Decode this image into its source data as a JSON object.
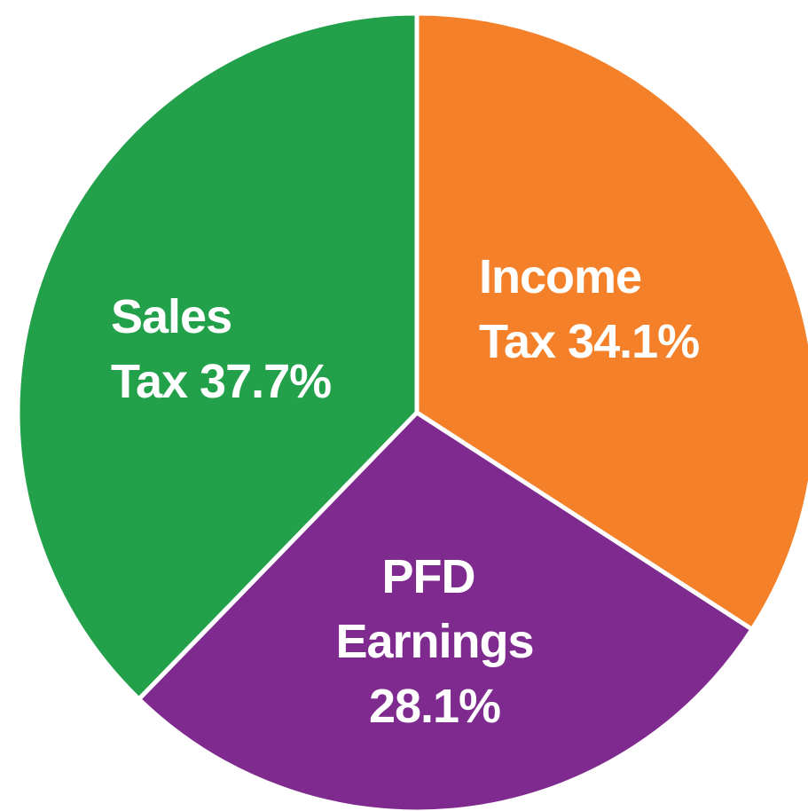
{
  "chart_data": {
    "type": "pie",
    "categories": [
      "Income Tax",
      "PFD Earnings",
      "Sales Tax"
    ],
    "values": [
      34.1,
      28.1,
      37.7
    ],
    "value_labels": [
      "34.1%",
      "28.1%",
      "37.7%"
    ],
    "colors": [
      "#f4812a",
      "#7f2a8e",
      "#22a04a"
    ]
  }
}
